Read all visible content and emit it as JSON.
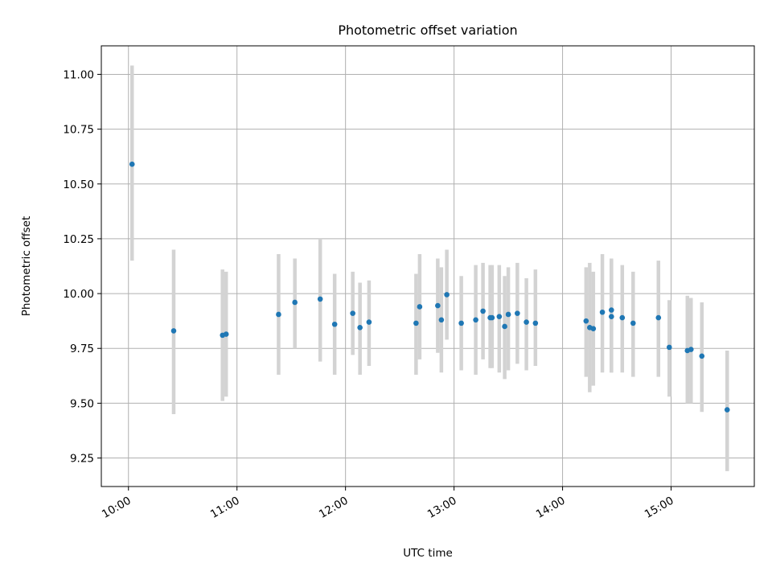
{
  "colors": {
    "marker": "#1f77b4",
    "errorbar": "#d3d3d3",
    "grid": "#b0b0b0",
    "axes": "#000000"
  },
  "chart_data": {
    "type": "scatter",
    "title": "Photometric offset variation",
    "xlabel": "UTC time",
    "ylabel": "Photometric offset",
    "x_tick_labels": [
      "10:00",
      "11:00",
      "12:00",
      "13:00",
      "14:00",
      "15:00"
    ],
    "y_tick_labels": [
      "9.25",
      "9.50",
      "9.75",
      "10.00",
      "10.25",
      "10.50",
      "10.75",
      "11.00"
    ],
    "xlim": [
      "09:45",
      "15:46"
    ],
    "ylim": [
      9.12,
      11.13
    ],
    "grid": true,
    "series": [
      {
        "x": [
          "10:02",
          "10:25",
          "10:52",
          "10:54",
          "11:23",
          "11:32",
          "11:46",
          "11:54",
          "12:04",
          "12:08",
          "12:13",
          "12:39",
          "12:41",
          "12:51",
          "12:53",
          "12:56",
          "13:04",
          "13:12",
          "13:16",
          "13:20",
          "13:21",
          "13:25",
          "13:28",
          "13:30",
          "13:35",
          "13:40",
          "13:45",
          "14:13",
          "14:15",
          "14:17",
          "14:22",
          "14:27",
          "14:27",
          "14:33",
          "14:39",
          "14:53",
          "14:59",
          "15:09",
          "15:11",
          "15:17",
          "15:31"
        ],
        "y": [
          10.59,
          9.83,
          9.81,
          9.815,
          9.905,
          9.96,
          9.975,
          9.86,
          9.91,
          9.845,
          9.87,
          9.865,
          9.94,
          9.945,
          9.88,
          9.995,
          9.865,
          9.88,
          9.92,
          9.89,
          9.89,
          9.895,
          9.85,
          9.905,
          9.91,
          9.87,
          9.865,
          9.875,
          9.845,
          9.84,
          9.915,
          9.925,
          9.895,
          9.89,
          9.865,
          9.89,
          9.755,
          9.74,
          9.745,
          9.715,
          9.47
        ],
        "yerr_low": [
          10.15,
          9.45,
          9.51,
          9.53,
          9.63,
          9.75,
          9.69,
          9.63,
          9.72,
          9.63,
          9.67,
          9.63,
          9.7,
          9.73,
          9.64,
          9.79,
          9.65,
          9.63,
          9.7,
          9.66,
          9.66,
          9.64,
          9.61,
          9.65,
          9.68,
          9.65,
          9.67,
          9.62,
          9.55,
          9.58,
          9.64,
          9.64,
          9.64,
          9.64,
          9.62,
          9.62,
          9.53,
          9.5,
          9.5,
          9.46,
          9.19
        ],
        "yerr_high": [
          11.04,
          10.2,
          10.11,
          10.1,
          10.18,
          10.16,
          10.25,
          10.09,
          10.1,
          10.05,
          10.06,
          10.09,
          10.18,
          10.16,
          10.12,
          10.2,
          10.08,
          10.13,
          10.14,
          10.13,
          10.13,
          10.13,
          10.08,
          10.12,
          10.14,
          10.07,
          10.11,
          10.12,
          10.14,
          10.1,
          10.18,
          10.16,
          10.15,
          10.13,
          10.1,
          10.15,
          9.97,
          9.99,
          9.98,
          9.96,
          9.74
        ]
      }
    ]
  }
}
